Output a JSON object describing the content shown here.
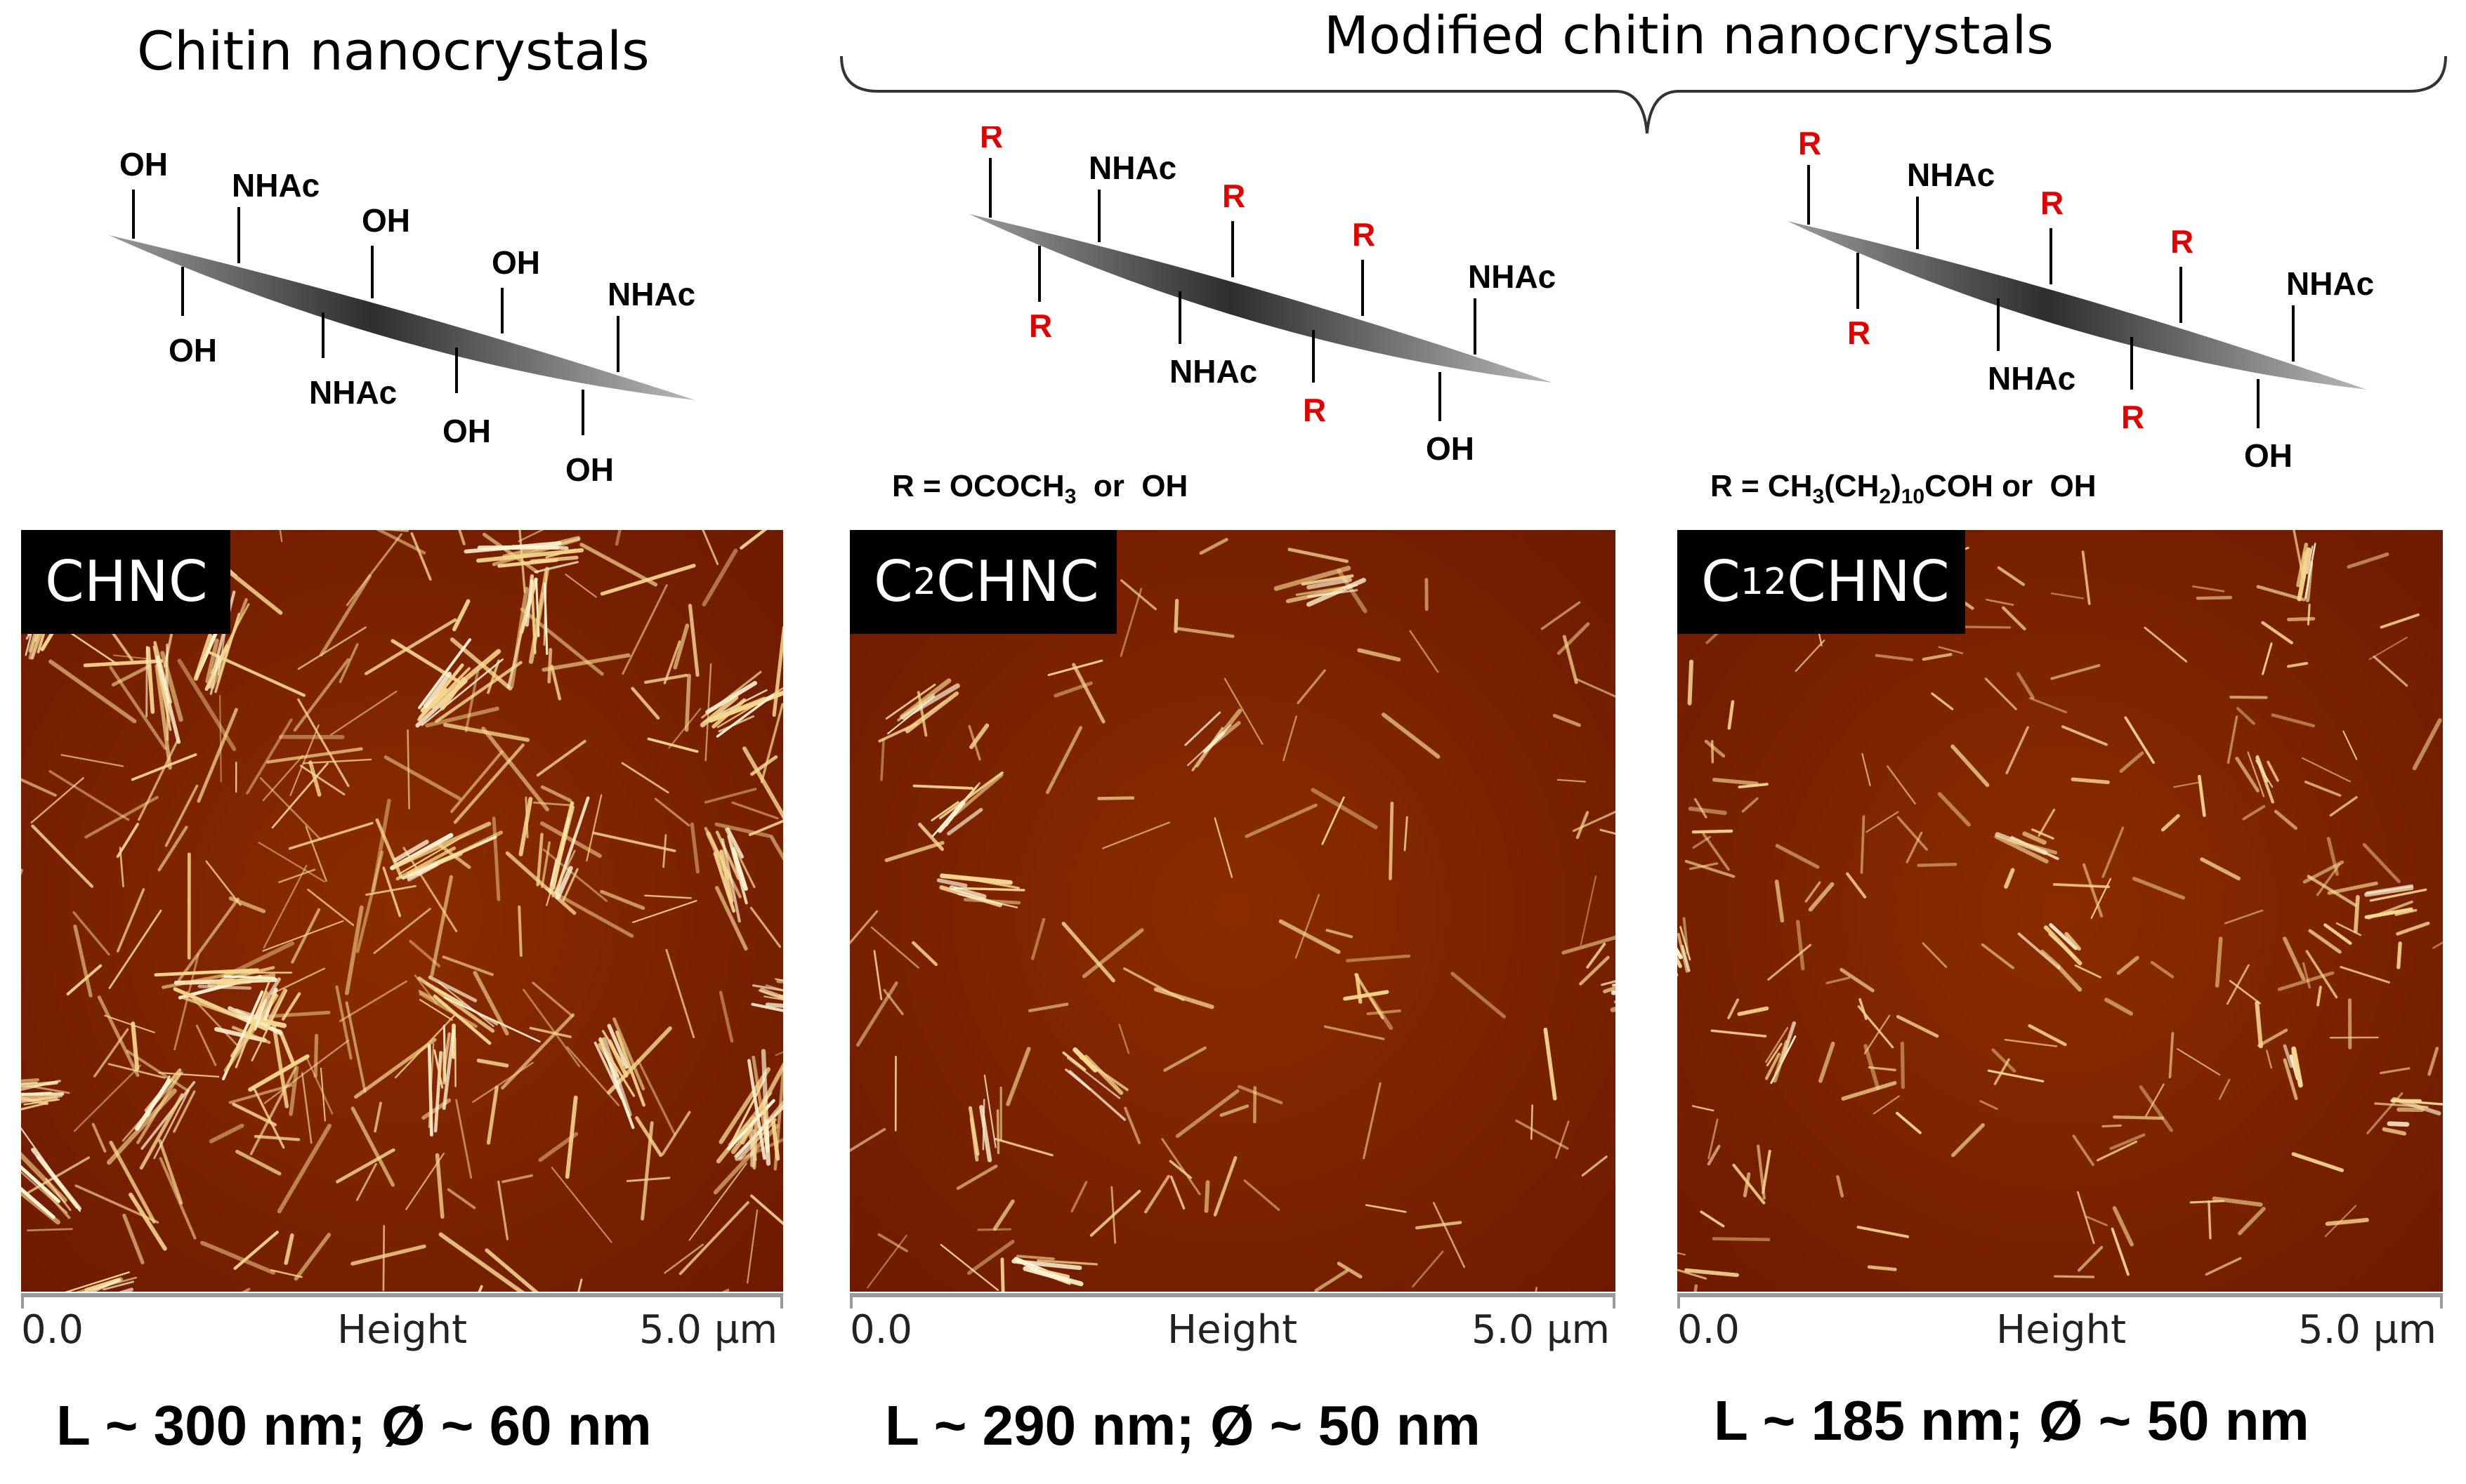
{
  "header": {
    "left_title": "Chitin nanocrystals",
    "group_title": "Modified chitin nanocrystals"
  },
  "molecule_labels": {
    "oh": "OH",
    "nhac": "NHAc",
    "r": "R"
  },
  "r_definitions": {
    "c2": {
      "prefix": "R = OCOCH",
      "sub": "3",
      "suffix": "  or  OH"
    },
    "c12": {
      "p1": "R = CH",
      "s1": "3",
      "p2": "(CH",
      "s2": "2",
      "p3": ")",
      "s3": "10",
      "p4": "COH or  OH"
    }
  },
  "panels": [
    {
      "tag_main": "CHNC",
      "tag_pre": "",
      "tag_sub": "",
      "axis_start": "0.0",
      "axis_mid": "Height",
      "axis_end": "5.0 µm",
      "dims": "L ~ 300 nm; Ø ~ 60 nm"
    },
    {
      "tag_main": "CHNC",
      "tag_pre": "C",
      "tag_sub": "2",
      "axis_start": "0.0",
      "axis_mid": "Height",
      "axis_end": "5.0 µm",
      "dims": "L ~ 290 nm; Ø ~ 50 nm"
    },
    {
      "tag_main": "CHNC",
      "tag_pre": "C",
      "tag_sub": "12",
      "axis_start": "0.0",
      "axis_mid": "Height",
      "axis_end": "5.0 µm",
      "dims": "L ~ 185 nm; Ø ~ 50 nm"
    }
  ],
  "colors": {
    "afm_dark": "#6a1800",
    "afm_mid": "#8a2c00",
    "fiber": "#f6d890",
    "fiber_bright": "#fff6d8",
    "r_label": "#e00000"
  }
}
